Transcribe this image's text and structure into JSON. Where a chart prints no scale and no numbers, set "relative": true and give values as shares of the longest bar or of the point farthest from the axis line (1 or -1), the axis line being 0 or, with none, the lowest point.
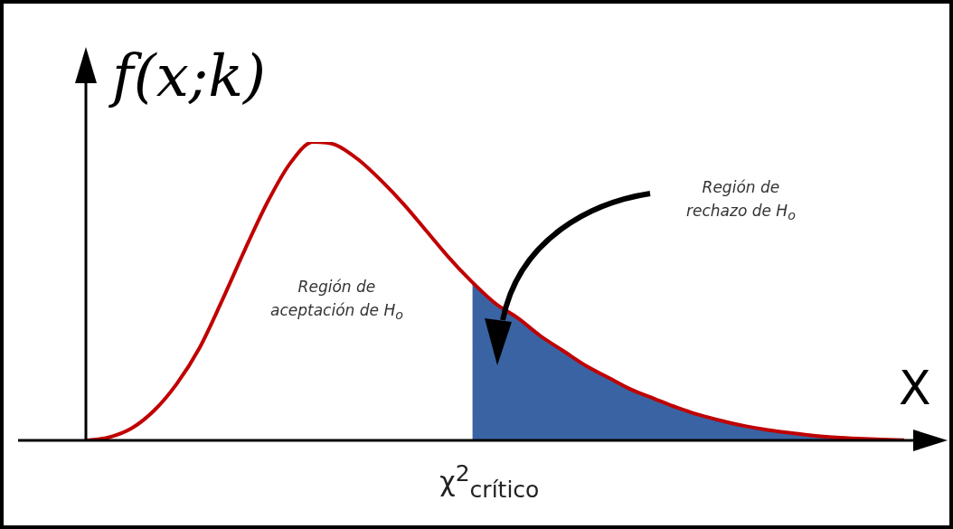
{
  "chart_data": {
    "type": "line",
    "relative": true,
    "xlabel": "X",
    "ylabel": "f(x;k)",
    "legend": false,
    "marker": "none",
    "categories": [
      null,
      null,
      null,
      null,
      null,
      null,
      null,
      null,
      null,
      null,
      null,
      null,
      null,
      null,
      null,
      null,
      null,
      null,
      null,
      null,
      null,
      null,
      null,
      null,
      null,
      null,
      null,
      null,
      null,
      null,
      null,
      null,
      null,
      null,
      null,
      null,
      null
    ],
    "series": [
      {
        "type": "area",
        "color": "#3a63a3",
        "values": [
          null,
          null,
          null,
          null,
          null,
          null,
          null,
          null,
          null,
          null,
          null,
          null,
          null,
          null,
          null,
          null,
          null,
          0.53,
          0.46,
          0.41,
          0.35,
          0.3,
          0.25,
          0.21,
          0.17,
          0.14,
          0.11,
          0.085,
          0.065,
          0.048,
          0.035,
          0.025,
          0.016,
          0.01,
          0.006,
          0.003,
          0.001
        ]
      },
      {
        "color": "#c00000",
        "values": [
          0,
          0.01,
          0.04,
          0.1,
          0.19,
          0.31,
          0.47,
          0.64,
          0.8,
          0.93,
          1,
          0.99,
          0.94,
          0.87,
          0.79,
          0.7,
          0.61,
          0.53,
          0.46,
          0.41,
          0.35,
          0.3,
          0.25,
          0.21,
          0.17,
          0.14,
          0.11,
          0.085,
          0.065,
          0.048,
          0.035,
          0.025,
          0.016,
          0.01,
          0.006,
          0.003,
          0.001
        ]
      }
    ],
    "annotations": [
      "Región de\naceptación de H$_{o}$",
      "Región de\nrechazo de H$_{o}$",
      "χ$^{2}$$_{crítico}$"
    ]
  }
}
